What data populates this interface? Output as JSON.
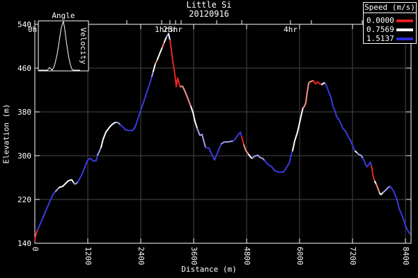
{
  "chart_data": {
    "type": "line",
    "title": "Little Si",
    "subtitle": "20120916",
    "xlabel": "Distance (m)",
    "ylabel": "Elevation (m)",
    "xlim": [
      0,
      8526
    ],
    "ylim": [
      140,
      540
    ],
    "xticks": [
      0,
      1200,
      2400,
      3600,
      4800,
      6000,
      7200,
      8400
    ],
    "yticks": [
      140,
      220,
      300,
      380,
      460,
      540
    ],
    "grid": true,
    "colors": {
      "bg": "#000000",
      "fg": "#ffffff",
      "grid": "#4a4a4a"
    },
    "legend": {
      "title": "Speed (m/s)",
      "entries": [
        {
          "label": "0.0000",
          "color": "#e62020"
        },
        {
          "label": "0.7569",
          "color": "#ffffff"
        },
        {
          "label": "1.5137",
          "color": "#2d2ddd"
        }
      ]
    },
    "speed_colors": {
      "r": "#ee2424",
      "p": "#f49382",
      "w": "#ffffff",
      "l": "#a2a2ec",
      "b": "#3a3ae0"
    },
    "time_axis": {
      "unit": "hr",
      "ticks": [
        {
          "d": 0,
          "label": "0hr"
        },
        {
          "d": 2084
        },
        {
          "d": 2874,
          "label": "1hr"
        },
        {
          "d": 3063,
          "label": "2hr"
        },
        {
          "d": 3189,
          "label": "3hr"
        },
        {
          "d": 3316
        },
        {
          "d": 4121
        },
        {
          "d": 4689
        },
        {
          "d": 5795,
          "label": "4hr"
        },
        {
          "d": 6268
        },
        {
          "d": 7421
        }
      ]
    },
    "inset": {
      "title": "Angle",
      "ylabel": "Velocity",
      "curve": [
        [
          1,
          71
        ],
        [
          7,
          71
        ],
        [
          13,
          71
        ],
        [
          16,
          67
        ],
        [
          18,
          69
        ],
        [
          20,
          71
        ],
        [
          23,
          65
        ],
        [
          25,
          57
        ],
        [
          27,
          48
        ],
        [
          29,
          36
        ],
        [
          31,
          22
        ],
        [
          33,
          10
        ],
        [
          35,
          3
        ],
        [
          36,
          1
        ],
        [
          38,
          12
        ],
        [
          40,
          28
        ],
        [
          42,
          42
        ],
        [
          44,
          54
        ],
        [
          46,
          63
        ],
        [
          48,
          69
        ],
        [
          50,
          71
        ],
        [
          56,
          71
        ],
        [
          60,
          71
        ]
      ]
    },
    "series": [
      {
        "name": "elevation-by-speed",
        "points": [
          [
            0,
            144,
            "r"
          ],
          [
            16,
            153,
            "r"
          ],
          [
            63,
            165,
            "b"
          ],
          [
            126,
            176,
            "b"
          ],
          [
            205,
            191,
            "b"
          ],
          [
            316,
            212,
            "b"
          ],
          [
            410,
            229,
            "b"
          ],
          [
            474,
            235,
            "l"
          ],
          [
            505,
            238,
            "l"
          ],
          [
            553,
            242,
            "w"
          ],
          [
            632,
            244,
            "w"
          ],
          [
            695,
            249,
            "w"
          ],
          [
            758,
            254,
            "w"
          ],
          [
            837,
            256,
            "w"
          ],
          [
            884,
            250,
            "l"
          ],
          [
            916,
            248,
            "l"
          ],
          [
            979,
            252,
            "b"
          ],
          [
            1074,
            267,
            "b"
          ],
          [
            1137,
            280,
            "b"
          ],
          [
            1184,
            290,
            "b"
          ],
          [
            1232,
            294,
            "b"
          ],
          [
            1263,
            295,
            "b"
          ],
          [
            1311,
            291,
            "b"
          ],
          [
            1342,
            290,
            "b"
          ],
          [
            1389,
            291,
            "b"
          ],
          [
            1421,
            301,
            "l"
          ],
          [
            1468,
            309,
            "l"
          ],
          [
            1500,
            315,
            "w"
          ],
          [
            1547,
            330,
            "w"
          ],
          [
            1611,
            343,
            "w"
          ],
          [
            1674,
            350,
            "w"
          ],
          [
            1737,
            356,
            "w"
          ],
          [
            1800,
            360,
            "w"
          ],
          [
            1847,
            361,
            "l"
          ],
          [
            1895,
            360,
            "l"
          ],
          [
            1942,
            356,
            "b"
          ],
          [
            2005,
            352,
            "b"
          ],
          [
            2053,
            347,
            "b"
          ],
          [
            2132,
            346,
            "b"
          ],
          [
            2211,
            346,
            "b"
          ],
          [
            2258,
            350,
            "b"
          ],
          [
            2290,
            356,
            "b"
          ],
          [
            2368,
            375,
            "b"
          ],
          [
            2447,
            394,
            "b"
          ],
          [
            2526,
            413,
            "b"
          ],
          [
            2605,
            432,
            "b"
          ],
          [
            2653,
            445,
            "l"
          ],
          [
            2684,
            454,
            "w"
          ],
          [
            2732,
            468,
            "p"
          ],
          [
            2779,
            476,
            "w"
          ],
          [
            2842,
            489,
            "w"
          ],
          [
            2889,
            498,
            "p"
          ],
          [
            2937,
            508,
            "w"
          ],
          [
            2984,
            517,
            "l"
          ],
          [
            3032,
            523,
            "w"
          ],
          [
            3063,
            511,
            "r"
          ],
          [
            3095,
            493,
            "r"
          ],
          [
            3126,
            473,
            "r"
          ],
          [
            3158,
            457,
            "r"
          ],
          [
            3189,
            438,
            "r"
          ],
          [
            3205,
            426,
            "r"
          ],
          [
            3237,
            442,
            "r"
          ],
          [
            3268,
            432,
            "r"
          ],
          [
            3300,
            426,
            "p"
          ],
          [
            3347,
            427,
            "p"
          ],
          [
            3395,
            419,
            "p"
          ],
          [
            3442,
            410,
            "p"
          ],
          [
            3489,
            400,
            "p"
          ],
          [
            3537,
            390,
            "w"
          ],
          [
            3584,
            379,
            "w"
          ],
          [
            3632,
            362,
            "w"
          ],
          [
            3679,
            350,
            "l"
          ],
          [
            3742,
            337,
            "l"
          ],
          [
            3789,
            339,
            "l"
          ],
          [
            3868,
            315,
            "b"
          ],
          [
            3947,
            314,
            "b"
          ],
          [
            4011,
            302,
            "b"
          ],
          [
            4074,
            292,
            "b"
          ],
          [
            4137,
            305,
            "b"
          ],
          [
            4184,
            314,
            "b"
          ],
          [
            4232,
            322,
            "l"
          ],
          [
            4295,
            325,
            "l"
          ],
          [
            4374,
            325,
            "l"
          ],
          [
            4437,
            326,
            "l"
          ],
          [
            4500,
            327,
            "b"
          ],
          [
            4547,
            331,
            "b"
          ],
          [
            4595,
            337,
            "b"
          ],
          [
            4658,
            343,
            "b"
          ],
          [
            4689,
            334,
            "r"
          ],
          [
            4737,
            320,
            "p"
          ],
          [
            4784,
            309,
            "p"
          ],
          [
            4847,
            302,
            "w"
          ],
          [
            4895,
            297,
            "w"
          ],
          [
            4926,
            295,
            "l"
          ],
          [
            4974,
            299,
            "l"
          ],
          [
            5021,
            300,
            "l"
          ],
          [
            5053,
            301,
            "l"
          ],
          [
            5100,
            297,
            "l"
          ],
          [
            5163,
            295,
            "l"
          ],
          [
            5211,
            291,
            "b"
          ],
          [
            5258,
            286,
            "b"
          ],
          [
            5321,
            282,
            "b"
          ],
          [
            5368,
            280,
            "b"
          ],
          [
            5432,
            273,
            "b"
          ],
          [
            5479,
            271,
            "b"
          ],
          [
            5542,
            270,
            "b"
          ],
          [
            5589,
            270,
            "b"
          ],
          [
            5637,
            270,
            "b"
          ],
          [
            5684,
            276,
            "b"
          ],
          [
            5732,
            282,
            "b"
          ],
          [
            5763,
            286,
            "b"
          ],
          [
            5811,
            302,
            "b"
          ],
          [
            5842,
            309,
            "w"
          ],
          [
            5889,
            327,
            "w"
          ],
          [
            5953,
            343,
            "w"
          ],
          [
            6000,
            360,
            "w"
          ],
          [
            6047,
            377,
            "w"
          ],
          [
            6079,
            388,
            "p"
          ],
          [
            6111,
            390,
            "p"
          ],
          [
            6142,
            397,
            "p"
          ],
          [
            6174,
            416,
            "p"
          ],
          [
            6205,
            432,
            "p"
          ],
          [
            6237,
            435,
            "p"
          ],
          [
            6268,
            436,
            "p"
          ],
          [
            6316,
            437,
            "r"
          ],
          [
            6363,
            431,
            "r"
          ],
          [
            6411,
            435,
            "r"
          ],
          [
            6458,
            431,
            "r"
          ],
          [
            6505,
            430,
            "w"
          ],
          [
            6553,
            433,
            "w"
          ],
          [
            6584,
            432,
            "b"
          ],
          [
            6632,
            423,
            "b"
          ],
          [
            6663,
            416,
            "b"
          ],
          [
            6711,
            407,
            "b"
          ],
          [
            6758,
            390,
            "b"
          ],
          [
            6805,
            381,
            "b"
          ],
          [
            6837,
            372,
            "b"
          ],
          [
            6900,
            365,
            "b"
          ],
          [
            6947,
            356,
            "b"
          ],
          [
            6979,
            350,
            "b"
          ],
          [
            7026,
            346,
            "b"
          ],
          [
            7058,
            343,
            "b"
          ],
          [
            7105,
            334,
            "b"
          ],
          [
            7153,
            328,
            "b"
          ],
          [
            7184,
            322,
            "b"
          ],
          [
            7216,
            315,
            "b"
          ],
          [
            7263,
            308,
            "w"
          ],
          [
            7311,
            305,
            "l"
          ],
          [
            7342,
            302,
            "l"
          ],
          [
            7389,
            301,
            "l"
          ],
          [
            7437,
            295,
            "b"
          ],
          [
            7468,
            290,
            "b"
          ],
          [
            7500,
            283,
            "b"
          ],
          [
            7532,
            280,
            "b"
          ],
          [
            7563,
            283,
            "b"
          ],
          [
            7579,
            286,
            "b"
          ],
          [
            7611,
            288,
            "b"
          ],
          [
            7626,
            282,
            "r"
          ],
          [
            7642,
            276,
            "r"
          ],
          [
            7658,
            267,
            "r"
          ],
          [
            7674,
            261,
            "r"
          ],
          [
            7705,
            253,
            "w"
          ],
          [
            7737,
            248,
            "p"
          ],
          [
            7768,
            242,
            "p"
          ],
          [
            7816,
            231,
            "w"
          ],
          [
            7847,
            229,
            "w"
          ],
          [
            7895,
            233,
            "l"
          ],
          [
            7926,
            235,
            "l"
          ],
          [
            7974,
            239,
            "l"
          ],
          [
            8005,
            242,
            "l"
          ],
          [
            8053,
            244,
            "b"
          ],
          [
            8100,
            239,
            "b"
          ],
          [
            8132,
            235,
            "b"
          ],
          [
            8163,
            229,
            "b"
          ],
          [
            8211,
            219,
            "b"
          ],
          [
            8258,
            203,
            "b"
          ],
          [
            8289,
            197,
            "b"
          ],
          [
            8321,
            191,
            "b"
          ],
          [
            8368,
            181,
            "b"
          ],
          [
            8416,
            169,
            "b"
          ],
          [
            8447,
            164,
            "b"
          ],
          [
            8479,
            160,
            "b"
          ],
          [
            8495,
            157,
            "b"
          ]
        ]
      }
    ]
  }
}
